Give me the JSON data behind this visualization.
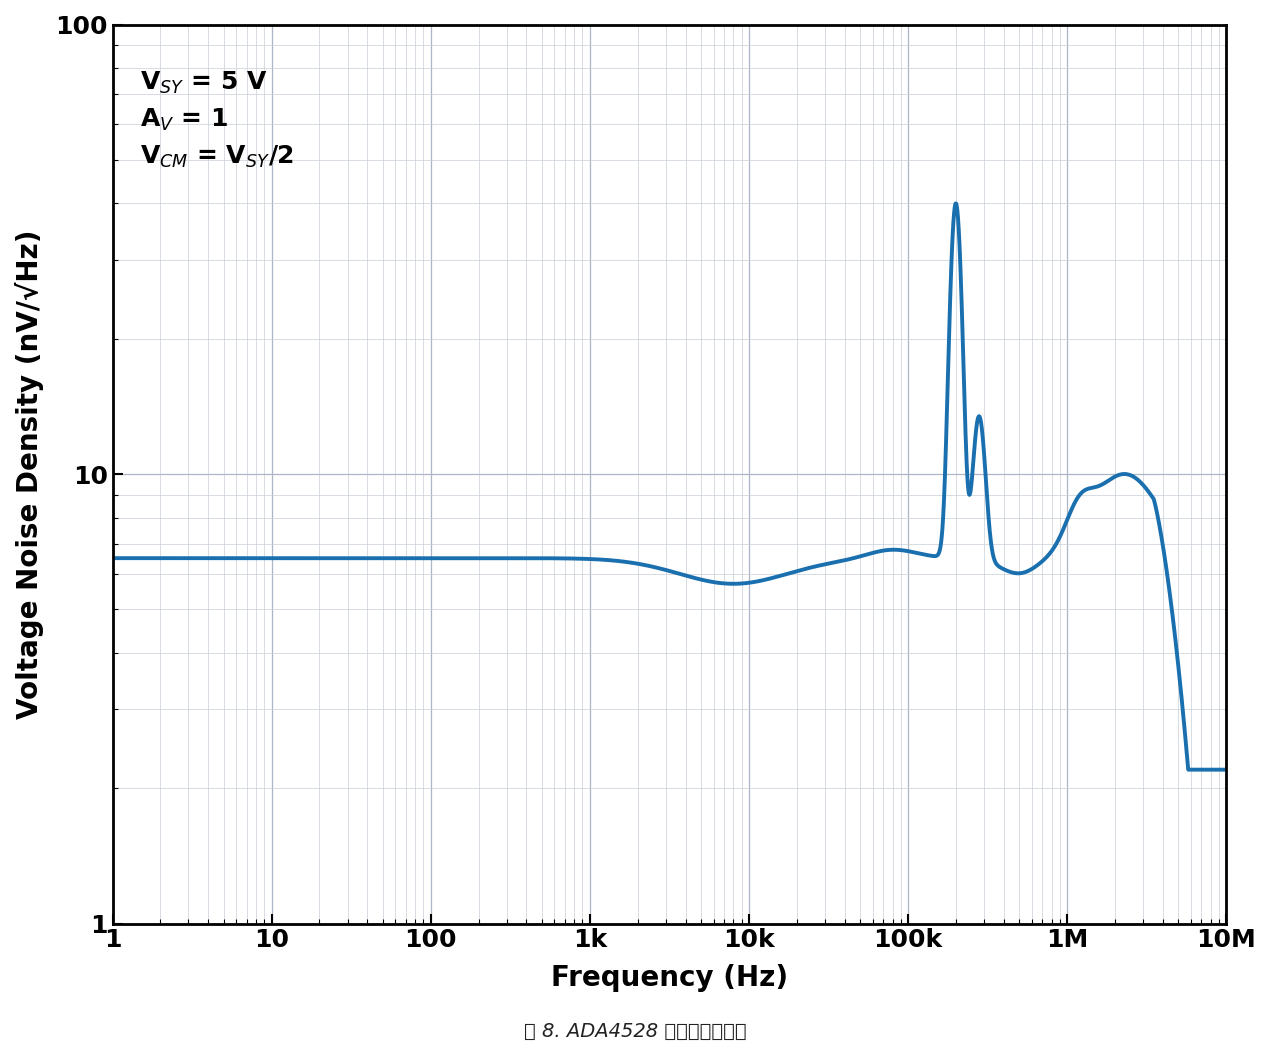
{
  "title": "",
  "xlabel": "Frequency (Hz)",
  "ylabel": "Voltage Noise Density (nV/√Hz)",
  "caption": "图 8. ADA4528 的噪声密度曲线",
  "xlim": [
    1,
    10000000.0
  ],
  "ylim": [
    1,
    100
  ],
  "line_color": "#1a6faf",
  "line_width": 2.8,
  "background_color": "#ffffff",
  "grid_major_color": "#adb5c7",
  "grid_minor_color": "#c8cfd8",
  "xtick_labels": [
    "1",
    "10",
    "100",
    "1k",
    "10k",
    "100k",
    "1M",
    "10M"
  ],
  "xtick_positions": [
    1,
    10,
    100,
    1000,
    10000,
    100000,
    1000000,
    10000000
  ],
  "ytick_labels": [
    "1",
    "10",
    "100"
  ],
  "ytick_positions": [
    1,
    10,
    100
  ],
  "annotation_text": "V$_{SY}$ = 5 V\nA$_{V}$ = 1\nV$_{CM}$ = V$_{SY}$/2",
  "xlabel_fontsize": 20,
  "ylabel_fontsize": 20,
  "tick_fontsize": 18,
  "annot_fontsize": 18,
  "caption_fontsize": 14
}
